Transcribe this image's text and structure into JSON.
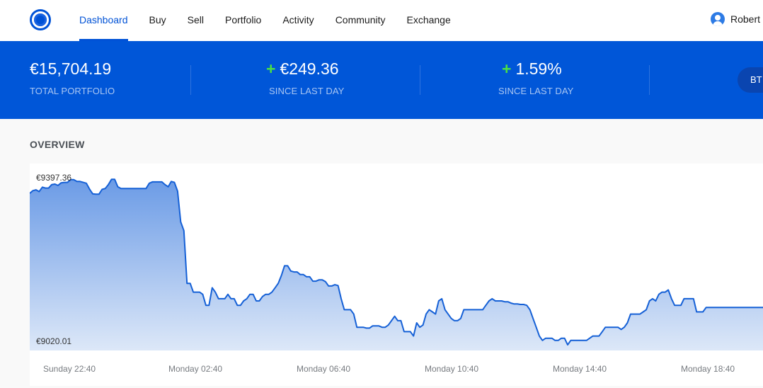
{
  "nav": {
    "items": [
      {
        "label": "Dashboard",
        "active": true
      },
      {
        "label": "Buy",
        "active": false
      },
      {
        "label": "Sell",
        "active": false
      },
      {
        "label": "Portfolio",
        "active": false
      },
      {
        "label": "Activity",
        "active": false
      },
      {
        "label": "Community",
        "active": false
      },
      {
        "label": "Exchange",
        "active": false
      }
    ],
    "user_name": "Robert"
  },
  "banner": {
    "total": {
      "value": "€15,704.19",
      "label": "TOTAL PORTFOLIO"
    },
    "change_abs": {
      "sign": "+",
      "value": "€249.36",
      "label": "SINCE LAST DAY"
    },
    "change_pct": {
      "sign": "+",
      "value": "1.59%",
      "label": "SINCE LAST DAY"
    },
    "pill_label": "BT"
  },
  "overview": {
    "title": "OVERVIEW",
    "y_max_label": "€9397.36",
    "y_min_label": "€9020.01"
  },
  "colors": {
    "brand": "#0052d6",
    "banner": "#0056d8",
    "positive": "#4be043",
    "line": "#1560d6"
  },
  "chart_data": {
    "type": "area",
    "x_ticks": [
      "Sunday 22:40",
      "Monday 02:40",
      "Monday 06:40",
      "Monday 10:40",
      "Monday 14:40",
      "Monday 18:40"
    ],
    "ylim": [
      9020.01,
      9397.36
    ],
    "y_labels": [
      "€9397.36",
      "€9020.01"
    ],
    "grid": false,
    "values": [
      9365,
      9371,
      9373,
      9369,
      9379,
      9377,
      9377,
      9385,
      9386,
      9383,
      9389,
      9390,
      9390,
      9396,
      9396,
      9392,
      9392,
      9390,
      9388,
      9375,
      9364,
      9363,
      9363,
      9374,
      9376,
      9385,
      9397,
      9397,
      9380,
      9376,
      9376,
      9376,
      9376,
      9376,
      9376,
      9376,
      9376,
      9376,
      9388,
      9391,
      9391,
      9391,
      9391,
      9385,
      9380,
      9392,
      9390,
      9370,
      9300,
      9280,
      9160,
      9160,
      9140,
      9140,
      9140,
      9135,
      9110,
      9110,
      9150,
      9140,
      9125,
      9125,
      9125,
      9135,
      9125,
      9125,
      9110,
      9110,
      9120,
      9125,
      9135,
      9135,
      9120,
      9120,
      9130,
      9135,
      9135,
      9140,
      9150,
      9160,
      9178,
      9200,
      9200,
      9188,
      9186,
      9186,
      9180,
      9180,
      9175,
      9175,
      9165,
      9165,
      9168,
      9168,
      9164,
      9154,
      9154,
      9157,
      9155,
      9125,
      9100,
      9100,
      9100,
      9090,
      9060,
      9060,
      9060,
      9058,
      9058,
      9063,
      9063,
      9063,
      9060,
      9060,
      9065,
      9075,
      9085,
      9075,
      9075,
      9050,
      9050,
      9050,
      9040,
      9070,
      9060,
      9065,
      9090,
      9100,
      9095,
      9090,
      9120,
      9125,
      9100,
      9090,
      9080,
      9075,
      9075,
      9080,
      9100,
      9100,
      9100,
      9100,
      9100,
      9100,
      9100,
      9110,
      9120,
      9125,
      9120,
      9120,
      9120,
      9118,
      9118,
      9115,
      9113,
      9113,
      9112,
      9112,
      9110,
      9100,
      9080,
      9060,
      9040,
      9030,
      9035,
      9035,
      9035,
      9030,
      9030,
      9035,
      9035,
      9020,
      9030,
      9030,
      9030,
      9030,
      9030,
      9030,
      9035,
      9040,
      9040,
      9040,
      9050,
      9060,
      9060,
      9060,
      9060,
      9060,
      9055,
      9060,
      9070,
      9090,
      9090,
      9090,
      9090,
      9095,
      9100,
      9120,
      9125,
      9120,
      9135,
      9140,
      9140,
      9145,
      9125,
      9110,
      9110,
      9110,
      9125,
      9125,
      9125,
      9125,
      9095,
      9095,
      9095,
      9105,
      9105,
      9105,
      9105,
      9105,
      9105,
      9105,
      9105,
      9105,
      9105,
      9105,
      9105,
      9105,
      9105,
      9105,
      9105,
      9105,
      9105,
      9105,
      9105
    ]
  }
}
